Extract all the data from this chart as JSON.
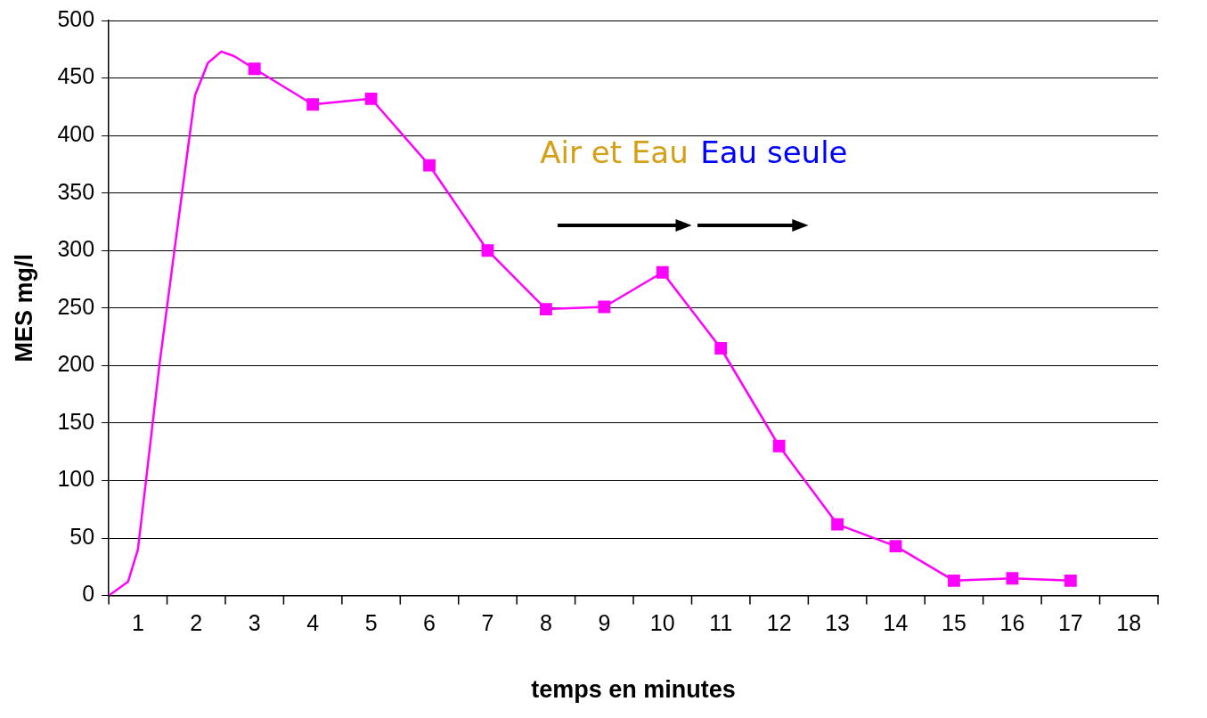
{
  "chart_data": {
    "type": "line",
    "xlabel": "temps en minutes",
    "ylabel": "MES mg/l",
    "xlim": [
      0.5,
      18.5
    ],
    "xticks": [
      1,
      2,
      3,
      4,
      5,
      6,
      7,
      8,
      9,
      10,
      11,
      12,
      13,
      14,
      15,
      16,
      17,
      18
    ],
    "ylim": [
      0,
      500
    ],
    "yticks": [
      0,
      50,
      100,
      150,
      200,
      250,
      300,
      350,
      400,
      450,
      500
    ],
    "grid": "y",
    "legend": false,
    "marker": "square",
    "line_style": "solid",
    "series": [
      {
        "marker": "none",
        "color": "#ff00ff",
        "x": [
          0.5,
          0.83,
          1.0,
          1.15,
          1.37,
          1.6,
          1.83,
          1.98,
          2.2,
          2.43,
          2.65,
          3
        ],
        "values": [
          0,
          12,
          40,
          105,
          201,
          290,
          378,
          435,
          463,
          473,
          469,
          458
        ]
      },
      {
        "color": "#ff00ff",
        "x": [
          3,
          4,
          5,
          6,
          7,
          8,
          9,
          10,
          11,
          12,
          13,
          14,
          15,
          16,
          17
        ],
        "values": [
          458,
          427,
          432,
          374,
          300,
          249,
          251,
          281,
          215,
          130,
          62,
          43,
          13,
          15,
          13
        ]
      }
    ],
    "annotations": [
      "Air et Eau",
      "Eau seule"
    ]
  }
}
